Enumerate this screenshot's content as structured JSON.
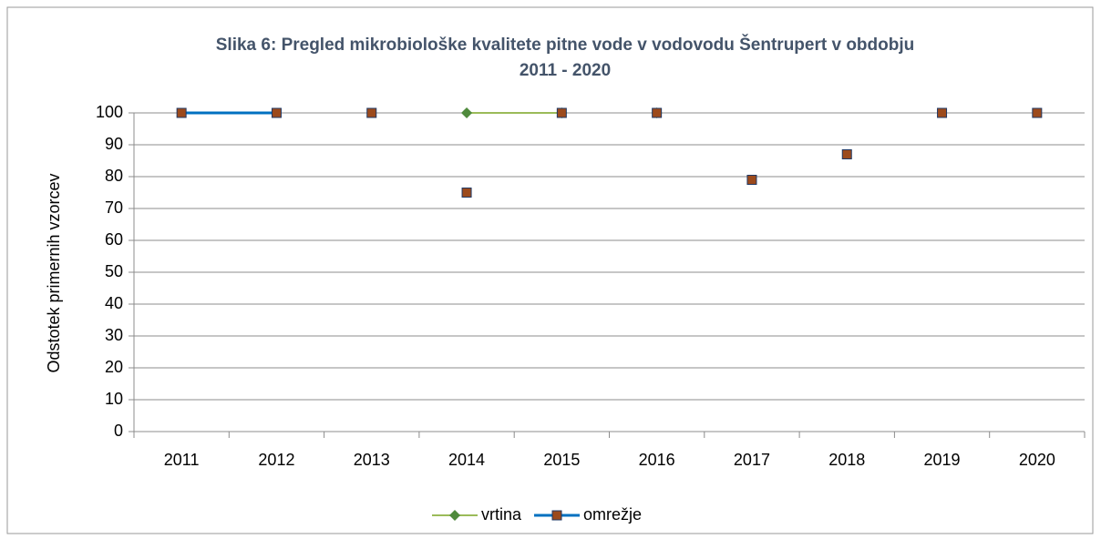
{
  "chart_data": {
    "type": "line",
    "title": "Slika 6: Pregled mikrobiološke kvalitete pitne vode v vodovodu Šentrupert v obdobju 2011 - 2020",
    "ylabel": "Odstotek primernih vzorcev",
    "categories": [
      "2011",
      "2012",
      "2013",
      "2014",
      "2015",
      "2016",
      "2017",
      "2018",
      "2019",
      "2020"
    ],
    "series": [
      {
        "name": "vrtina",
        "color": "#9bbb59",
        "marker": "diamond",
        "marker_color": "#4f8a3c",
        "width": 2,
        "values": [
          null,
          null,
          null,
          100,
          100,
          100,
          null,
          null,
          null,
          null
        ]
      },
      {
        "name": "omrežje",
        "color": "#0070c0",
        "marker": "square",
        "marker_color": "#9c4a1c",
        "width": 3,
        "values": [
          100,
          100,
          100,
          75,
          100,
          100,
          79,
          87,
          100,
          100
        ]
      }
    ],
    "ylim": [
      0,
      100
    ],
    "yticks": [
      0,
      10,
      20,
      30,
      40,
      50,
      60,
      70,
      80,
      90,
      100
    ],
    "grid": true,
    "smooth": true,
    "legend": "bottom"
  }
}
